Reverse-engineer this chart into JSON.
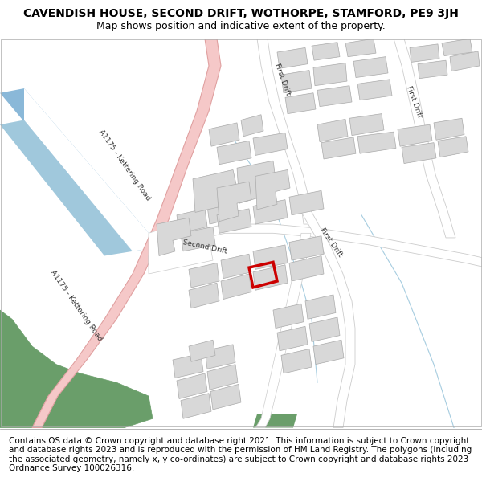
{
  "title": "CAVENDISH HOUSE, SECOND DRIFT, WOTHORPE, STAMFORD, PE9 3JH",
  "subtitle": "Map shows position and indicative extent of the property.",
  "footer": "Contains OS data © Crown copyright and database right 2021. This information is subject to Crown copyright and database rights 2023 and is reproduced with the permission of HM Land Registry. The polygons (including the associated geometry, namely x, y co-ordinates) are subject to Crown copyright and database rights 2023 Ordnance Survey 100026316.",
  "road_pink": "#f5c8c8",
  "road_pink_border": "#e0a0a0",
  "road_gray": "#e0e0e0",
  "road_gray_border": "#cccccc",
  "building_fill": "#d8d8d8",
  "building_edge": "#aaaaaa",
  "green_fill": "#6a9e6a",
  "blue_fill": "#8ab8d8",
  "highlight_red": "#cc0000",
  "map_bg": "#ffffff",
  "title_fontsize": 10,
  "subtitle_fontsize": 9,
  "footer_fontsize": 7.5,
  "label_fontsize": 6.5
}
